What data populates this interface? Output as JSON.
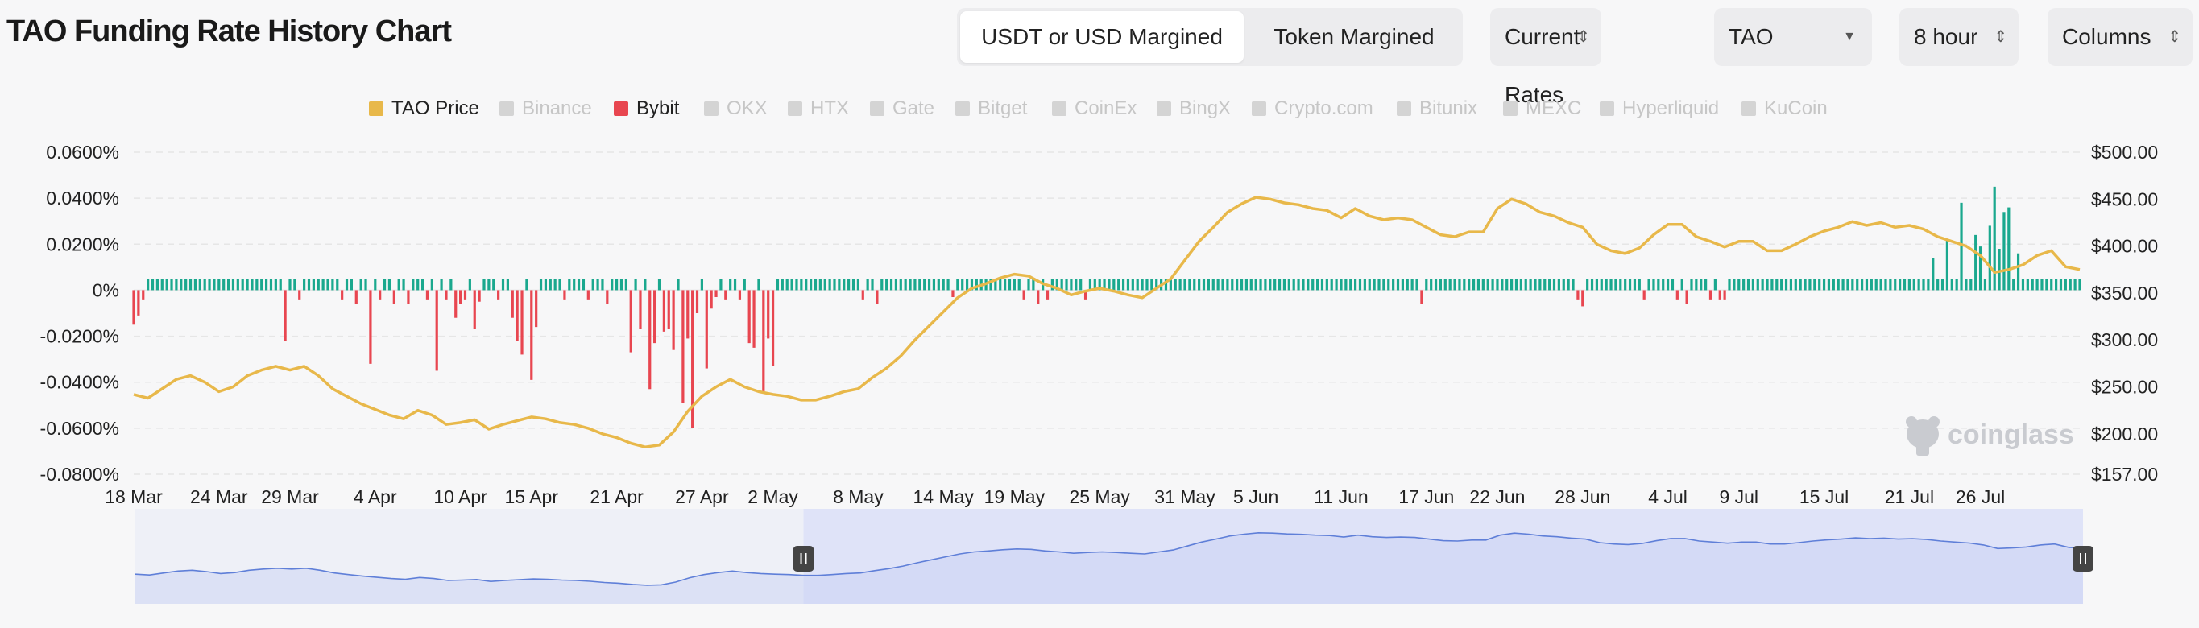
{
  "header": {
    "title": "TAO Funding Rate History Chart",
    "margin_tabs": [
      {
        "label": "USDT or USD Margined",
        "active": true
      },
      {
        "label": "Token Margined",
        "active": false
      }
    ],
    "rates_select": "Current Rates",
    "coin_select": "TAO",
    "interval_select": "8 hour",
    "chart_type_select": "Columns"
  },
  "legend": [
    {
      "label": "TAO Price",
      "color": "#e8b84a",
      "active": true
    },
    {
      "label": "Binance",
      "color": "#f0b90b",
      "active": false
    },
    {
      "label": "Bybit",
      "color": "#e84650",
      "active": true
    },
    {
      "label": "OKX",
      "color": "#d4d4d4",
      "active": false
    },
    {
      "label": "HTX",
      "color": "#d4d4d4",
      "active": false
    },
    {
      "label": "Gate",
      "color": "#d4d4d4",
      "active": false
    },
    {
      "label": "Bitget",
      "color": "#d4d4d4",
      "active": false
    },
    {
      "label": "CoinEx",
      "color": "#d4d4d4",
      "active": false
    },
    {
      "label": "BingX",
      "color": "#d4d4d4",
      "active": false
    },
    {
      "label": "Crypto.com",
      "color": "#d4d4d4",
      "active": false
    },
    {
      "label": "Bitunix",
      "color": "#d4d4d4",
      "active": false
    },
    {
      "label": "MEXC",
      "color": "#d4d4d4",
      "active": false
    },
    {
      "label": "Hyperliquid",
      "color": "#d4d4d4",
      "active": false
    },
    {
      "label": "KuCoin",
      "color": "#d4d4d4",
      "active": false
    }
  ],
  "watermark": "coinglass",
  "chart_data": {
    "type": "bar",
    "left_axis": {
      "ticks": [
        "0.0600%",
        "0.0400%",
        "0.0200%",
        "0%",
        "-0.0200%",
        "-0.0400%",
        "-0.0600%",
        "-0.0800%"
      ],
      "tick_values": [
        0.06,
        0.04,
        0.02,
        0,
        -0.02,
        -0.04,
        -0.06,
        -0.08
      ],
      "range": [
        -0.08,
        0.06
      ]
    },
    "right_axis": {
      "ticks": [
        "$500.00",
        "$450.00",
        "$400.00",
        "$350.00",
        "$300.00",
        "$250.00",
        "$200.00",
        "$157.00"
      ],
      "tick_values": [
        500,
        450,
        400,
        350,
        300,
        250,
        200,
        157
      ],
      "range": [
        157,
        500
      ]
    },
    "x_axis": {
      "ticks": [
        "18 Mar",
        "24 Mar",
        "29 Mar",
        "4 Apr",
        "10 Apr",
        "15 Apr",
        "21 Apr",
        "27 Apr",
        "2 May",
        "8 May",
        "14 May",
        "19 May",
        "25 May",
        "31 May",
        "5 Jun",
        "11 Jun",
        "17 Jun",
        "22 Jun",
        "28 Jun",
        "4 Jul",
        "9 Jul",
        "15 Jul",
        "21 Jul",
        "26 Jul"
      ],
      "tick_days": [
        0,
        6,
        11,
        17,
        23,
        28,
        34,
        40,
        45,
        51,
        57,
        62,
        68,
        74,
        79,
        85,
        91,
        96,
        102,
        108,
        113,
        119,
        125,
        130
      ],
      "start_date": "18 Mar",
      "total_days": 137
    },
    "series": [
      {
        "name": "TAO Price",
        "type": "line",
        "axis": "right",
        "color": "#e8b84a",
        "points": [
          [
            0,
            242
          ],
          [
            1,
            238
          ],
          [
            2,
            248
          ],
          [
            3,
            258
          ],
          [
            4,
            262
          ],
          [
            5,
            255
          ],
          [
            6,
            245
          ],
          [
            7,
            250
          ],
          [
            8,
            262
          ],
          [
            9,
            268
          ],
          [
            10,
            272
          ],
          [
            11,
            268
          ],
          [
            12,
            272
          ],
          [
            13,
            262
          ],
          [
            14,
            248
          ],
          [
            15,
            240
          ],
          [
            16,
            232
          ],
          [
            17,
            226
          ],
          [
            18,
            220
          ],
          [
            19,
            216
          ],
          [
            20,
            225
          ],
          [
            21,
            220
          ],
          [
            22,
            210
          ],
          [
            23,
            212
          ],
          [
            24,
            215
          ],
          [
            25,
            205
          ],
          [
            26,
            210
          ],
          [
            27,
            214
          ],
          [
            28,
            218
          ],
          [
            29,
            216
          ],
          [
            30,
            212
          ],
          [
            31,
            210
          ],
          [
            32,
            206
          ],
          [
            33,
            200
          ],
          [
            34,
            196
          ],
          [
            35,
            190
          ],
          [
            36,
            186
          ],
          [
            37,
            188
          ],
          [
            38,
            202
          ],
          [
            39,
            224
          ],
          [
            40,
            240
          ],
          [
            41,
            250
          ],
          [
            42,
            258
          ],
          [
            43,
            250
          ],
          [
            44,
            245
          ],
          [
            45,
            242
          ],
          [
            46,
            240
          ],
          [
            47,
            236
          ],
          [
            48,
            236
          ],
          [
            49,
            240
          ],
          [
            50,
            245
          ],
          [
            51,
            248
          ],
          [
            52,
            260
          ],
          [
            53,
            270
          ],
          [
            54,
            283
          ],
          [
            55,
            300
          ],
          [
            56,
            315
          ],
          [
            57,
            330
          ],
          [
            58,
            345
          ],
          [
            59,
            355
          ],
          [
            60,
            360
          ],
          [
            61,
            366
          ],
          [
            62,
            370
          ],
          [
            63,
            368
          ],
          [
            64,
            360
          ],
          [
            65,
            355
          ],
          [
            66,
            348
          ],
          [
            67,
            352
          ],
          [
            68,
            355
          ],
          [
            69,
            352
          ],
          [
            70,
            348
          ],
          [
            71,
            345
          ],
          [
            72,
            355
          ],
          [
            73,
            365
          ],
          [
            74,
            385
          ],
          [
            75,
            405
          ],
          [
            76,
            420
          ],
          [
            77,
            436
          ],
          [
            78,
            445
          ],
          [
            79,
            452
          ],
          [
            80,
            450
          ],
          [
            81,
            446
          ],
          [
            82,
            444
          ],
          [
            83,
            440
          ],
          [
            84,
            438
          ],
          [
            85,
            430
          ],
          [
            86,
            440
          ],
          [
            87,
            432
          ],
          [
            88,
            428
          ],
          [
            89,
            430
          ],
          [
            90,
            428
          ],
          [
            91,
            420
          ],
          [
            92,
            412
          ],
          [
            93,
            410
          ],
          [
            94,
            415
          ],
          [
            95,
            415
          ],
          [
            96,
            440
          ],
          [
            97,
            450
          ],
          [
            98,
            445
          ],
          [
            99,
            436
          ],
          [
            100,
            432
          ],
          [
            101,
            425
          ],
          [
            102,
            420
          ],
          [
            103,
            402
          ],
          [
            104,
            395
          ],
          [
            105,
            392
          ],
          [
            106,
            398
          ],
          [
            107,
            412
          ],
          [
            108,
            423
          ],
          [
            109,
            423
          ],
          [
            110,
            410
          ],
          [
            111,
            405
          ],
          [
            112,
            399
          ],
          [
            113,
            405
          ],
          [
            114,
            405
          ],
          [
            115,
            395
          ],
          [
            116,
            395
          ],
          [
            117,
            402
          ],
          [
            118,
            410
          ],
          [
            119,
            416
          ],
          [
            120,
            420
          ],
          [
            121,
            426
          ],
          [
            122,
            422
          ],
          [
            123,
            425
          ],
          [
            124,
            420
          ],
          [
            125,
            422
          ],
          [
            126,
            418
          ],
          [
            127,
            410
          ],
          [
            128,
            405
          ],
          [
            129,
            400
          ],
          [
            130,
            390
          ],
          [
            131,
            372
          ],
          [
            132,
            375
          ],
          [
            133,
            380
          ],
          [
            134,
            390
          ],
          [
            135,
            395
          ],
          [
            136,
            378
          ],
          [
            137,
            375
          ]
        ]
      },
      {
        "name": "Bybit",
        "type": "bar",
        "axis": "left",
        "positive_color": "#1aa88e",
        "negative_color": "#e84650",
        "segments": [
          {
            "from": 0,
            "to": 2,
            "base": 0.005,
            "spikes": [
              [
                0.1,
                -0.015
              ],
              [
                0.4,
                -0.011
              ],
              [
                0.6,
                -0.004
              ]
            ]
          },
          {
            "from": 2,
            "to": 10,
            "base": 0.005,
            "spikes": []
          },
          {
            "from": 10,
            "to": 14,
            "base": 0.005,
            "spikes": [
              [
                10.8,
                -0.022
              ],
              [
                11.7,
                -0.004
              ]
            ]
          },
          {
            "from": 14,
            "to": 22,
            "base": 0.005,
            "spikes": [
              [
                14.5,
                -0.004
              ],
              [
                15.6,
                -0.006
              ],
              [
                16.8,
                -0.032
              ],
              [
                17.2,
                -0.004
              ],
              [
                18.3,
                -0.006
              ],
              [
                19.4,
                -0.006
              ],
              [
                20.5,
                -0.004
              ],
              [
                21.2,
                -0.035
              ],
              [
                22.0,
                -0.004
              ]
            ]
          },
          {
            "from": 22,
            "to": 28,
            "base": 0.005,
            "spikes": [
              [
                22.5,
                -0.012
              ],
              [
                23.0,
                -0.006
              ],
              [
                23.4,
                -0.004
              ],
              [
                23.9,
                -0.017
              ],
              [
                24.2,
                -0.005
              ],
              [
                25.5,
                -0.004
              ],
              [
                26.5,
                -0.012
              ],
              [
                27.0,
                -0.022
              ],
              [
                27.3,
                -0.028
              ],
              [
                27.9,
                -0.039
              ],
              [
                28.3,
                -0.016
              ]
            ]
          },
          {
            "from": 28,
            "to": 37,
            "base": 0.005,
            "spikes": [
              [
                30.3,
                -0.004
              ],
              [
                32.1,
                -0.004
              ],
              [
                33.2,
                -0.006
              ],
              [
                35.1,
                -0.027
              ],
              [
                35.6,
                -0.017
              ],
              [
                36.4,
                -0.043
              ],
              [
                36.7,
                -0.023
              ],
              [
                37.2,
                -0.018
              ]
            ]
          },
          {
            "from": 37,
            "to": 44,
            "base": 0.005,
            "spikes": [
              [
                37.6,
                -0.017
              ],
              [
                38.0,
                -0.026
              ],
              [
                38.5,
                -0.049
              ],
              [
                38.9,
                -0.021
              ],
              [
                39.4,
                -0.06
              ],
              [
                39.8,
                -0.01
              ],
              [
                40.3,
                -0.034
              ],
              [
                40.7,
                -0.008
              ],
              [
                41.0,
                -0.003
              ],
              [
                41.8,
                -0.004
              ],
              [
                42.8,
                -0.004
              ],
              [
                43.4,
                -0.023
              ],
              [
                43.8,
                -0.025
              ],
              [
                44.3,
                -0.045
              ],
              [
                44.6,
                -0.021
              ],
              [
                45.0,
                -0.033
              ]
            ]
          },
          {
            "from": 45,
            "to": 60,
            "base": 0.005,
            "spikes": [
              [
                51.3,
                -0.004
              ],
              [
                52.3,
                -0.006
              ],
              [
                57.6,
                -0.003
              ],
              [
                62.6,
                -0.004
              ],
              [
                63.8,
                -0.006
              ],
              [
                64.4,
                -0.004
              ],
              [
                67.0,
                -0.004
              ]
            ]
          },
          {
            "from": 60,
            "to": 90,
            "base": 0.005,
            "spikes": [
              [
                90.8,
                -0.006
              ]
            ]
          },
          {
            "from": 90,
            "to": 110,
            "base": 0.005,
            "spikes": [
              [
                101.6,
                -0.004
              ],
              [
                101.9,
                -0.007
              ],
              [
                106.3,
                -0.004
              ],
              [
                108.8,
                -0.004
              ],
              [
                109.2,
                -0.006
              ],
              [
                110.9,
                -0.004
              ],
              [
                111.5,
                -0.004
              ],
              [
                112.0,
                -0.004
              ]
            ]
          },
          {
            "from": 110,
            "to": 138,
            "base": 0.005,
            "spikes": [
              [
                126.5,
                0.013
              ],
              [
                126.8,
                0.014
              ],
              [
                127.5,
                0.022
              ],
              [
                128.8,
                0.038
              ],
              [
                129.6,
                0.024
              ],
              [
                130.0,
                0.019
              ],
              [
                130.5,
                0.028
              ],
              [
                130.9,
                0.045
              ],
              [
                131.3,
                0.018
              ],
              [
                131.8,
                0.034
              ],
              [
                132.1,
                0.036
              ],
              [
                132.6,
                0.016
              ]
            ]
          }
        ]
      }
    ],
    "navigator": {
      "selected_from_day": 47,
      "selected_to_day": 137
    },
    "grid": true,
    "legend_position": "top-center"
  }
}
